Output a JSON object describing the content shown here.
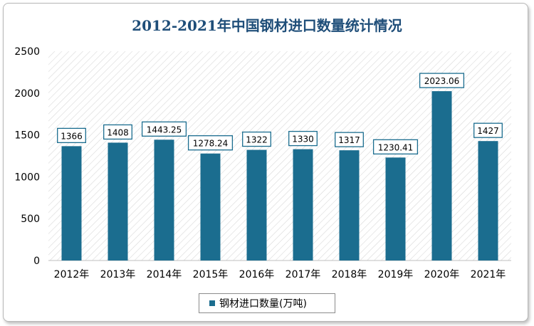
{
  "chart_data": {
    "type": "bar",
    "title": "2012-2021年中国钢材进口数量统计情况",
    "categories": [
      "2012年",
      "2013年",
      "2014年",
      "2015年",
      "2016年",
      "2017年",
      "2018年",
      "2019年",
      "2020年",
      "2021年"
    ],
    "data_labels": [
      "1366",
      "1408",
      "1443.25",
      "1278.24",
      "1322",
      "1330",
      "1317",
      "1230.41",
      "2023.06",
      "1427"
    ],
    "series": [
      {
        "name": "钢材进口数量(万吨)",
        "values": [
          1366,
          1408,
          1443.25,
          1278.24,
          1322,
          1330,
          1317,
          1230.41,
          2023.06,
          1427
        ]
      }
    ],
    "yticks": [
      "0",
      "500",
      "1000",
      "1500",
      "2000",
      "2500"
    ],
    "ylim": [
      0,
      2500
    ],
    "xlabel": "",
    "ylabel": "",
    "legend_position": "bottom",
    "grid": false,
    "bar_color": "#1b6d8f",
    "label_border_color": "#1b6d8f"
  }
}
